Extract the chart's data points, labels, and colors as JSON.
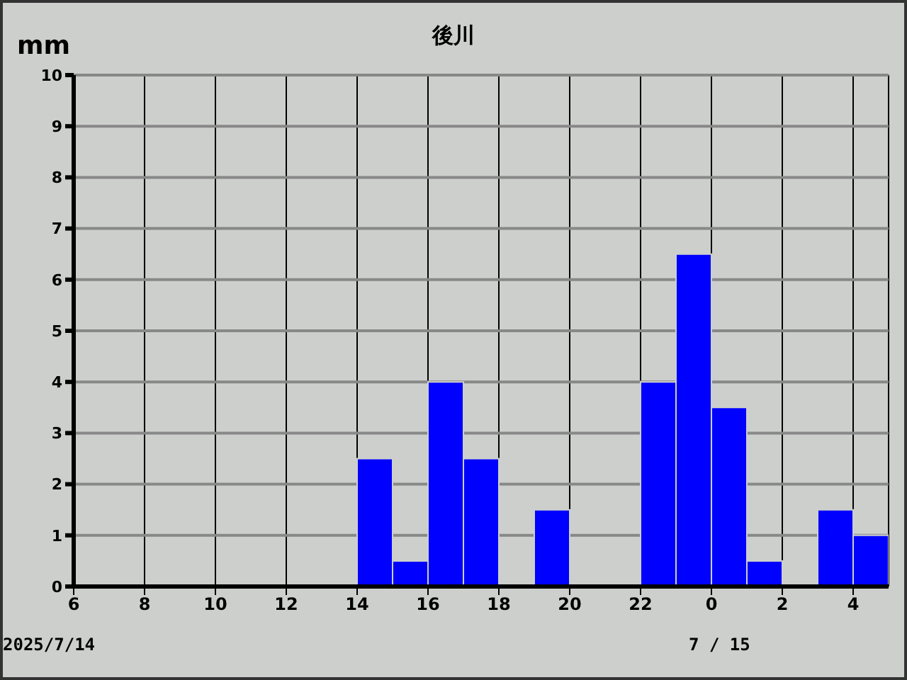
{
  "chart_data": {
    "type": "histogram",
    "title": "後川",
    "ylabel": "mm",
    "bins": [
      "2025-07-14T06:00",
      "2025-07-14T07:00",
      "2025-07-14T08:00",
      "2025-07-14T09:00",
      "2025-07-14T10:00",
      "2025-07-14T11:00",
      "2025-07-14T12:00",
      "2025-07-14T13:00",
      "2025-07-14T14:00",
      "2025-07-14T15:00",
      "2025-07-14T16:00",
      "2025-07-14T17:00",
      "2025-07-14T18:00",
      "2025-07-14T19:00",
      "2025-07-14T20:00",
      "2025-07-14T21:00",
      "2025-07-14T22:00",
      "2025-07-14T23:00",
      "2025-07-15T00:00",
      "2025-07-15T01:00",
      "2025-07-15T02:00",
      "2025-07-15T03:00",
      "2025-07-15T04:00",
      "2025-07-15T05:00"
    ],
    "values": [
      0,
      0,
      0,
      0,
      0,
      0,
      0,
      0,
      2.5,
      0.5,
      4,
      2.5,
      0,
      1.5,
      0,
      0,
      4,
      6.5,
      3.5,
      0.5,
      0,
      1.5,
      1
    ],
    "color": "#0000ff",
    "xlim": [
      "2025-07-14T06:00",
      "2025-07-15T05:00"
    ],
    "xticks": [
      {
        "value": "2025-07-14T06:00",
        "label": "6"
      },
      {
        "value": "2025-07-14T08:00",
        "label": "8"
      },
      {
        "value": "2025-07-14T10:00",
        "label": "10"
      },
      {
        "value": "2025-07-14T12:00",
        "label": "12"
      },
      {
        "value": "2025-07-14T14:00",
        "label": "14"
      },
      {
        "value": "2025-07-14T16:00",
        "label": "16"
      },
      {
        "value": "2025-07-14T18:00",
        "label": "18"
      },
      {
        "value": "2025-07-14T20:00",
        "label": "20"
      },
      {
        "value": "2025-07-14T22:00",
        "label": "22"
      },
      {
        "value": "2025-07-15T00:00",
        "label": "0"
      },
      {
        "value": "2025-07-15T02:00",
        "label": "2"
      },
      {
        "value": "2025-07-15T04:00",
        "label": "4"
      }
    ],
    "ylim": [
      0,
      10
    ],
    "yticks": [
      0,
      1,
      2,
      3,
      4,
      5,
      6,
      7,
      8,
      9,
      10
    ],
    "grid": true,
    "annotations": [
      "2025/7/14",
      "7 / 15"
    ]
  }
}
